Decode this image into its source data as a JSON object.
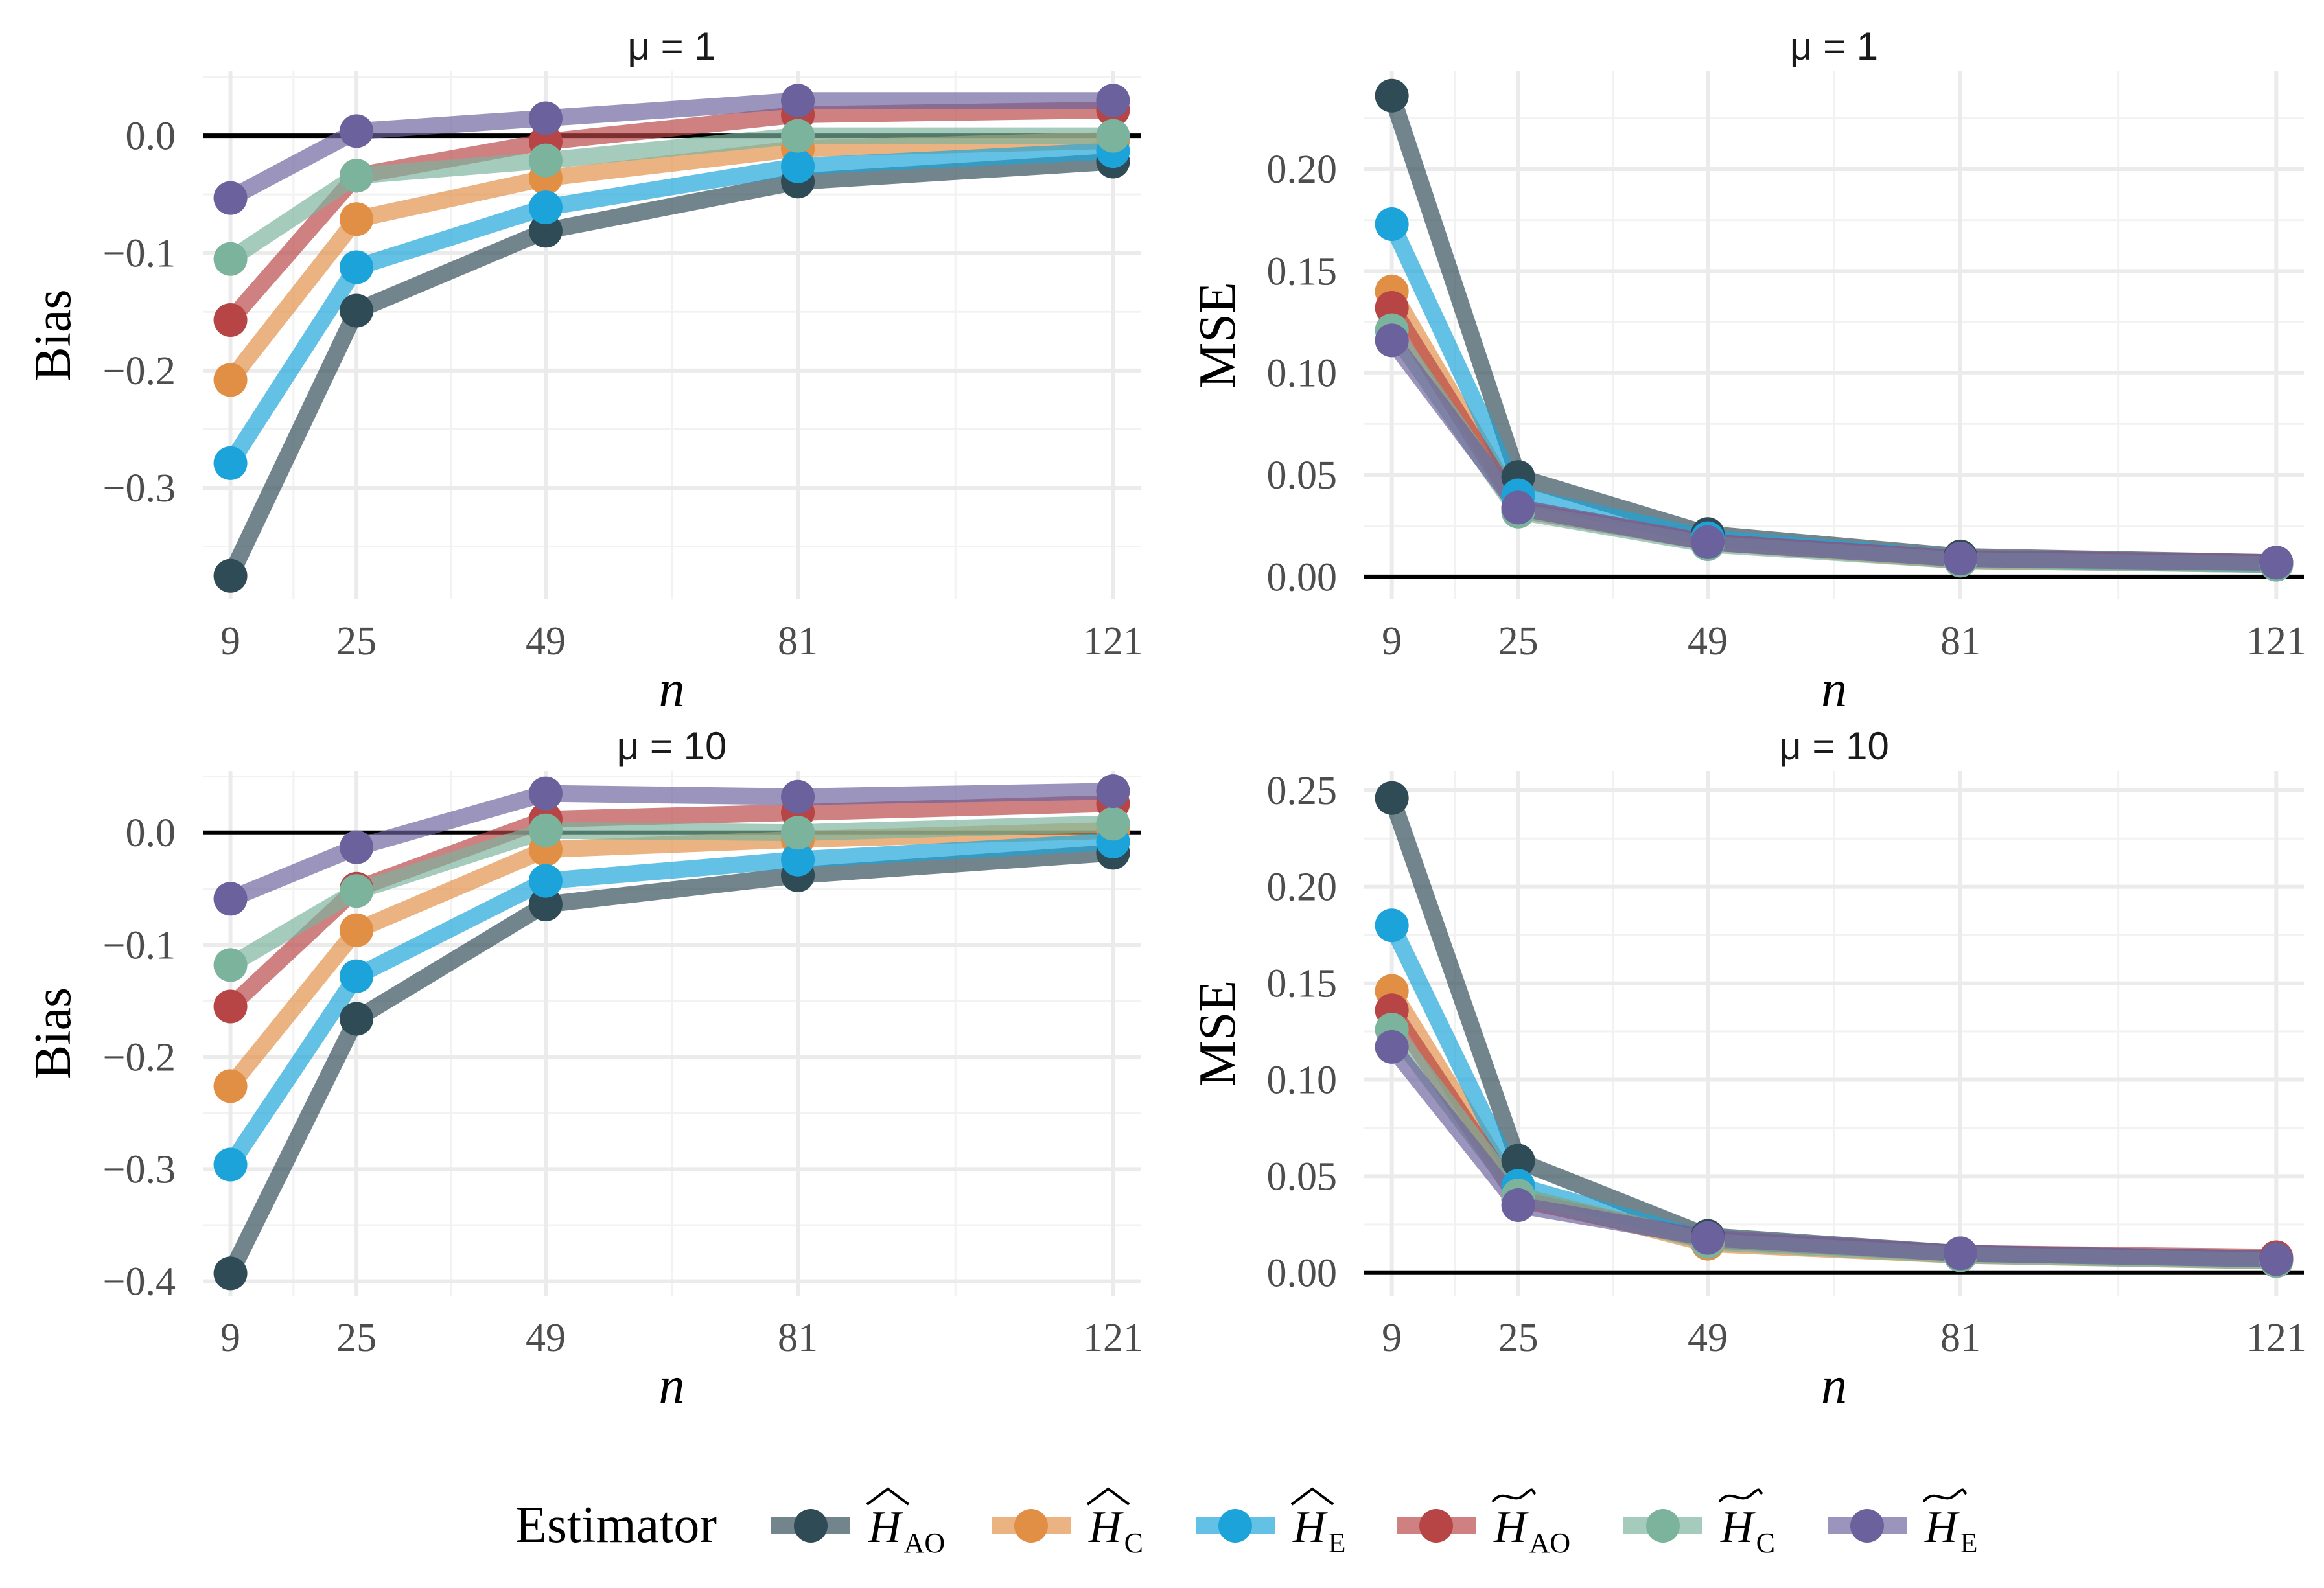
{
  "legend": {
    "title": "Estimator",
    "items": [
      {
        "key": "H_AO_hat",
        "base": "H",
        "accent": "hat",
        "sub": "AO",
        "color": "#2f4b55"
      },
      {
        "key": "H_C_hat",
        "base": "H",
        "accent": "hat",
        "sub": "C",
        "color": "#e08f45"
      },
      {
        "key": "H_E_hat",
        "base": "H",
        "accent": "hat",
        "sub": "E",
        "color": "#1ba3da"
      },
      {
        "key": "H_AO_tilde",
        "base": "H",
        "accent": "tilde",
        "sub": "AO",
        "color": "#b84545"
      },
      {
        "key": "H_C_tilde",
        "base": "H",
        "accent": "tilde",
        "sub": "C",
        "color": "#7bb39c"
      },
      {
        "key": "H_E_tilde",
        "base": "H",
        "accent": "tilde",
        "sub": "E",
        "color": "#6b619c"
      }
    ]
  },
  "chart_data": [
    {
      "type": "line",
      "title": "μ = 1",
      "xlabel": "n",
      "ylabel": "Bias",
      "x": [
        9,
        25,
        49,
        81,
        121
      ],
      "xlim": [
        5.5,
        124.5
      ],
      "ylim": [
        -0.395,
        0.055
      ],
      "yticks": [
        0.0,
        -0.1,
        -0.2,
        -0.3
      ],
      "ytick_labels": [
        "0.0",
        "−0.1",
        "−0.2",
        "−0.3"
      ],
      "reference_line": 0,
      "grid": true,
      "series": [
        {
          "name": "H_AO_hat",
          "values": [
            -0.375,
            -0.149,
            -0.081,
            -0.039,
            -0.022
          ]
        },
        {
          "name": "H_C_hat",
          "values": [
            -0.208,
            -0.071,
            -0.036,
            -0.011,
            -0.004
          ]
        },
        {
          "name": "H_E_hat",
          "values": [
            -0.279,
            -0.112,
            -0.061,
            -0.026,
            -0.013
          ]
        },
        {
          "name": "H_AO_tilde",
          "values": [
            -0.157,
            -0.034,
            -0.005,
            0.018,
            0.022
          ]
        },
        {
          "name": "H_C_tilde",
          "values": [
            -0.105,
            -0.034,
            -0.021,
            0.0,
            0.0
          ]
        },
        {
          "name": "H_E_tilde",
          "values": [
            -0.053,
            0.004,
            0.015,
            0.03,
            0.03
          ]
        }
      ]
    },
    {
      "type": "line",
      "title": "μ = 1",
      "xlabel": "n",
      "ylabel": "MSE",
      "x": [
        9,
        25,
        49,
        81,
        121
      ],
      "xlim": [
        5.5,
        124.5
      ],
      "ylim": [
        -0.011,
        0.248
      ],
      "yticks": [
        0.0,
        0.05,
        0.1,
        0.15,
        0.2
      ],
      "ytick_labels": [
        "0.00",
        "0.05",
        "0.10",
        "0.15",
        "0.20"
      ],
      "reference_line": 0,
      "grid": true,
      "series": [
        {
          "name": "H_AO_hat",
          "values": [
            0.236,
            0.049,
            0.021,
            0.01,
            0.007
          ]
        },
        {
          "name": "H_C_hat",
          "values": [
            0.14,
            0.034,
            0.017,
            0.008,
            0.006
          ]
        },
        {
          "name": "H_E_hat",
          "values": [
            0.173,
            0.04,
            0.019,
            0.009,
            0.006
          ]
        },
        {
          "name": "H_AO_tilde",
          "values": [
            0.132,
            0.033,
            0.017,
            0.009,
            0.007
          ]
        },
        {
          "name": "H_C_tilde",
          "values": [
            0.121,
            0.032,
            0.016,
            0.008,
            0.006
          ]
        },
        {
          "name": "H_E_tilde",
          "values": [
            0.116,
            0.034,
            0.017,
            0.009,
            0.007
          ]
        }
      ]
    },
    {
      "type": "line",
      "title": "μ = 10",
      "xlabel": "n",
      "ylabel": "Bias",
      "x": [
        9,
        25,
        49,
        81,
        121
      ],
      "xlim": [
        5.5,
        124.5
      ],
      "ylim": [
        -0.413,
        0.055
      ],
      "yticks": [
        0.0,
        -0.1,
        -0.2,
        -0.3,
        -0.4
      ],
      "ytick_labels": [
        "0.0",
        "−0.1",
        "−0.2",
        "−0.3",
        "−0.4"
      ],
      "reference_line": 0,
      "grid": true,
      "series": [
        {
          "name": "H_AO_hat",
          "values": [
            -0.393,
            -0.166,
            -0.064,
            -0.038,
            -0.018
          ]
        },
        {
          "name": "H_C_hat",
          "values": [
            -0.226,
            -0.087,
            -0.015,
            -0.006,
            0.002
          ]
        },
        {
          "name": "H_E_hat",
          "values": [
            -0.296,
            -0.128,
            -0.043,
            -0.024,
            -0.008
          ]
        },
        {
          "name": "H_AO_tilde",
          "values": [
            -0.155,
            -0.05,
            0.012,
            0.018,
            0.026
          ]
        },
        {
          "name": "H_C_tilde",
          "values": [
            -0.118,
            -0.052,
            0.002,
            0.0,
            0.008
          ]
        },
        {
          "name": "H_E_tilde",
          "values": [
            -0.059,
            -0.013,
            0.035,
            0.032,
            0.037
          ]
        }
      ]
    },
    {
      "type": "line",
      "title": "μ = 10",
      "xlabel": "n",
      "ylabel": "MSE",
      "x": [
        9,
        25,
        49,
        81,
        121
      ],
      "xlim": [
        5.5,
        124.5
      ],
      "ylim": [
        -0.012,
        0.26
      ],
      "yticks": [
        0.0,
        0.05,
        0.1,
        0.15,
        0.2,
        0.25
      ],
      "ytick_labels": [
        "0.00",
        "0.05",
        "0.10",
        "0.15",
        "0.20",
        "0.25"
      ],
      "reference_line": 0,
      "grid": true,
      "series": [
        {
          "name": "H_AO_hat",
          "values": [
            0.246,
            0.058,
            0.019,
            0.01,
            0.007
          ]
        },
        {
          "name": "H_C_hat",
          "values": [
            0.146,
            0.04,
            0.015,
            0.009,
            0.006
          ]
        },
        {
          "name": "H_E_hat",
          "values": [
            0.18,
            0.045,
            0.017,
            0.01,
            0.007
          ]
        },
        {
          "name": "H_AO_tilde",
          "values": [
            0.136,
            0.038,
            0.017,
            0.01,
            0.008
          ]
        },
        {
          "name": "H_C_tilde",
          "values": [
            0.126,
            0.04,
            0.016,
            0.009,
            0.006
          ]
        },
        {
          "name": "H_E_tilde",
          "values": [
            0.117,
            0.035,
            0.018,
            0.01,
            0.007
          ]
        }
      ]
    }
  ]
}
